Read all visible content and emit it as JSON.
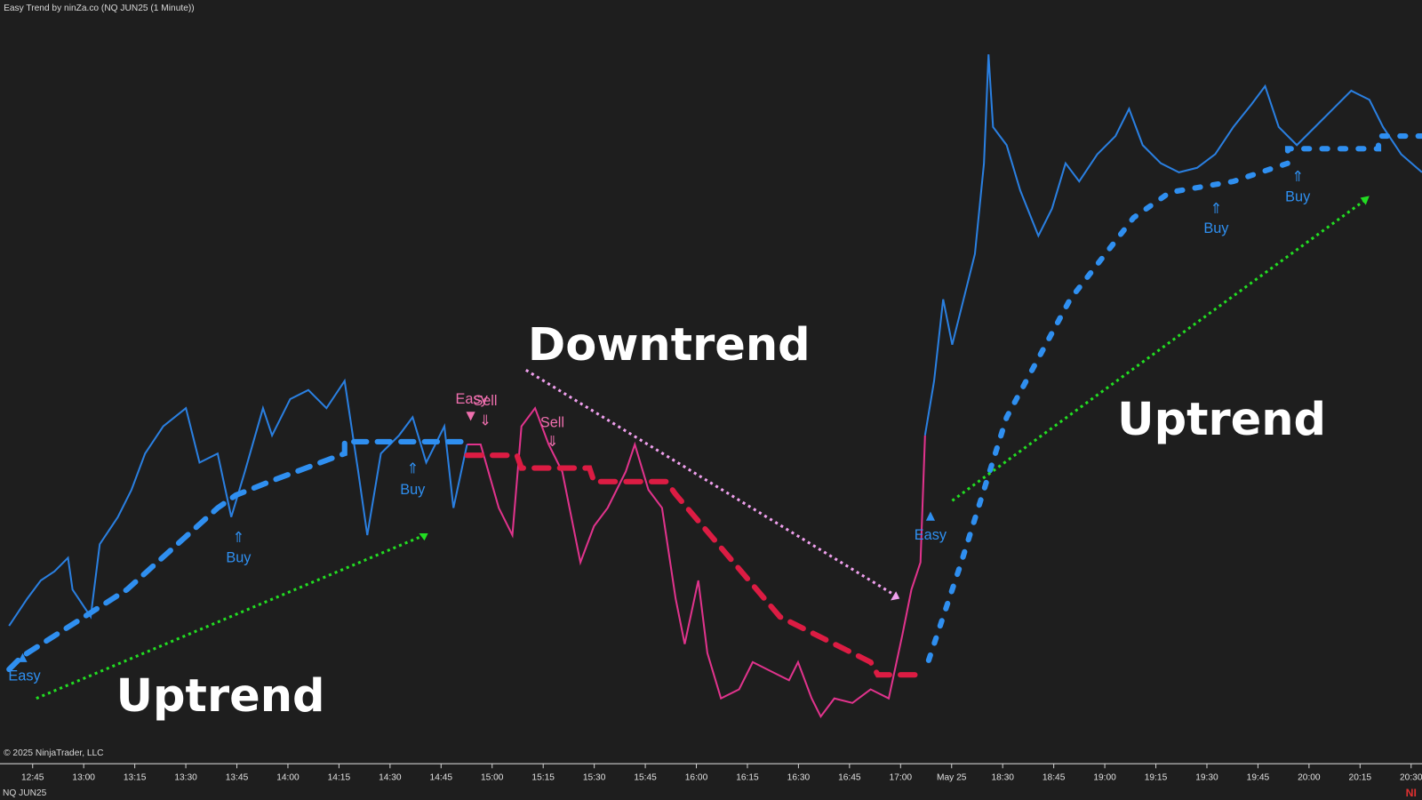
{
  "header": {
    "title": "Easy Trend by ninZa.co (NQ JUN25 (1 Minute))"
  },
  "footer": {
    "copyright": "© 2025 NinjaTrader, LLC",
    "instrument": "NQ JUN25",
    "brand": "NI"
  },
  "time_axis": {
    "labels": [
      "12:45",
      "13:00",
      "13:15",
      "13:30",
      "13:45",
      "14:00",
      "14:15",
      "14:30",
      "14:45",
      "15:00",
      "15:15",
      "15:30",
      "15:45",
      "16:00",
      "16:15",
      "16:30",
      "16:45",
      "17:00",
      "May 25",
      "18:30",
      "18:45",
      "19:00",
      "19:15",
      "19:30",
      "19:45",
      "20:00",
      "20:15",
      "20:30"
    ]
  },
  "annotations": [
    {
      "text": "Uptrend"
    },
    {
      "text": "Downtrend"
    },
    {
      "text": "Uptrend"
    }
  ],
  "signals": [
    {
      "text": "Easy"
    },
    {
      "text": "Buy"
    },
    {
      "text": "Buy"
    },
    {
      "text": "Easy"
    },
    {
      "text": "Sell"
    },
    {
      "text": "Sell"
    },
    {
      "text": "Easy"
    },
    {
      "text": "Buy"
    },
    {
      "text": "Buy"
    }
  ]
}
